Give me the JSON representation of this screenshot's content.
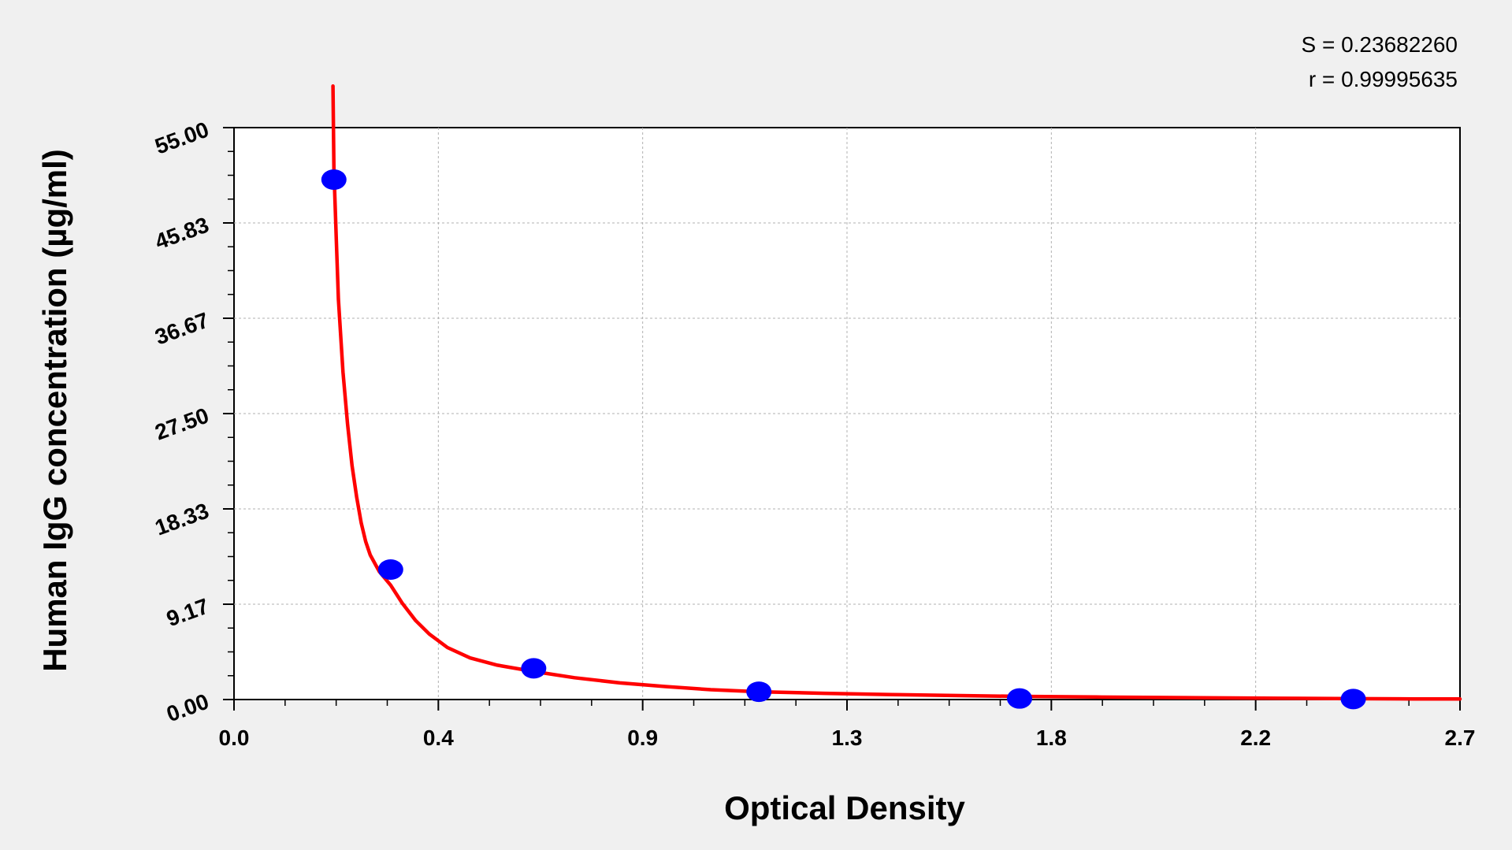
{
  "chart_data": {
    "type": "scatter",
    "title": "",
    "xlabel": "Optical Density",
    "ylabel": "Human IgG concentration (µg/ml)",
    "xlim": [
      0.0,
      2.7
    ],
    "ylim": [
      0.0,
      55.0
    ],
    "x_ticks": [
      "0.0",
      "0.4",
      "0.9",
      "1.3",
      "1.8",
      "2.2",
      "2.7"
    ],
    "y_ticks": [
      "0.00",
      "9.17",
      "18.33",
      "27.50",
      "36.67",
      "45.83",
      "55.00"
    ],
    "grid": true,
    "annotations": {
      "s_value": "S = 0.23682260",
      "r_value": "r = 0.99995635"
    },
    "colors": {
      "points": "#0000ff",
      "curve": "#ff0000",
      "grid": "#b0b0b0",
      "background": "#f0f0f0",
      "plot_area": "#ffffff"
    },
    "series": [
      {
        "type": "scatter",
        "x": [
          0.22,
          0.345,
          0.66,
          1.156,
          1.73,
          2.465
        ],
        "y": [
          50.0,
          12.5,
          3.0,
          0.75,
          0.1,
          0.05
        ]
      },
      {
        "type": "line",
        "x": [
          0.218,
          0.22,
          0.225,
          0.23,
          0.24,
          0.25,
          0.26,
          0.27,
          0.28,
          0.29,
          0.3,
          0.32,
          0.345,
          0.37,
          0.4,
          0.43,
          0.47,
          0.52,
          0.58,
          0.66,
          0.75,
          0.85,
          0.95,
          1.05,
          1.156,
          1.3,
          1.45,
          1.6,
          1.73,
          1.9,
          2.1,
          2.3,
          2.465,
          2.6,
          2.7
        ],
        "y": [
          59.0,
          51.0,
          44.5,
          38.5,
          31.5,
          26.5,
          22.5,
          19.5,
          17.0,
          15.2,
          13.9,
          12.3,
          11.0,
          9.3,
          7.6,
          6.3,
          5.0,
          4.0,
          3.3,
          2.7,
          2.1,
          1.6,
          1.25,
          0.95,
          0.75,
          0.6,
          0.48,
          0.38,
          0.3,
          0.24,
          0.18,
          0.12,
          0.08,
          0.06,
          0.05
        ]
      }
    ]
  }
}
